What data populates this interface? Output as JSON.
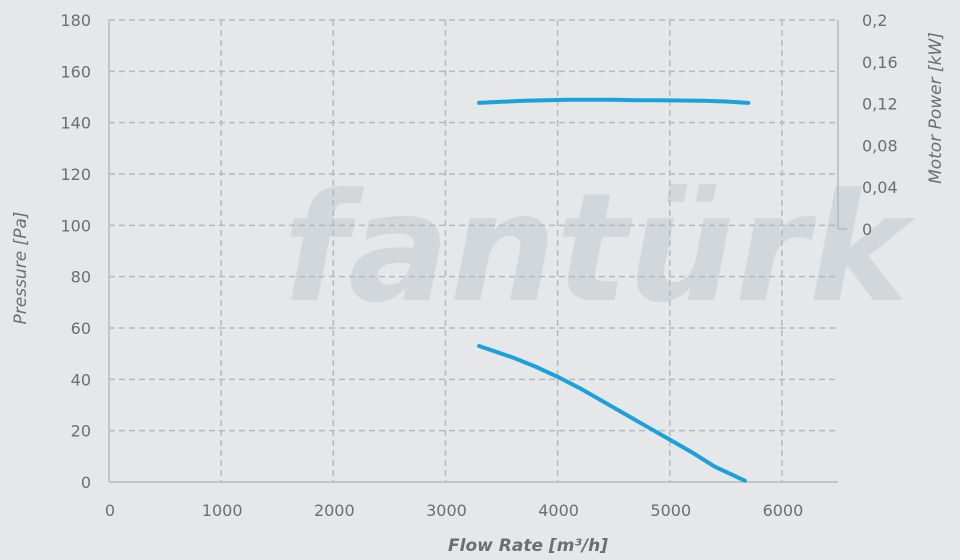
{
  "chart_data": {
    "type": "line",
    "xlabel": "Flow Rate [m³/h]",
    "ylabel": "Pressure [Pa]",
    "y2label": "Motor Power [kW]",
    "xlim": [
      0,
      6500
    ],
    "ylim": [
      0,
      180
    ],
    "y2lim": [
      0,
      0.2
    ],
    "x_ticks": [
      "0",
      "1000",
      "2000",
      "3000",
      "4000",
      "5000",
      "6000"
    ],
    "y_ticks": [
      "0",
      "20",
      "40",
      "60",
      "80",
      "100",
      "120",
      "140",
      "160",
      "180"
    ],
    "y2_ticks": [
      "0",
      "0,04",
      "0,08",
      "0,12",
      "0,16",
      "0,2"
    ],
    "grid": true,
    "watermark": "fantürk",
    "colors": {
      "series": "#1ba1dc",
      "grid": "#b7b9bb",
      "text": "#6d6e71",
      "background": "#e6e7e8"
    },
    "series": [
      {
        "axis": "right",
        "x": [
          3300,
          3500,
          3700,
          3900,
          4100,
          4300,
          4500,
          4700,
          4900,
          5100,
          5300,
          5500,
          5700
        ],
        "y": [
          0.1207,
          0.1217,
          0.1227,
          0.1233,
          0.1237,
          0.1237,
          0.1237,
          0.1233,
          0.1233,
          0.123,
          0.1227,
          0.122,
          0.1207
        ]
      },
      {
        "axis": "left",
        "x": [
          3300,
          3600,
          3800,
          4000,
          4200,
          4400,
          4600,
          4800,
          5000,
          5200,
          5400,
          5670
        ],
        "y": [
          53,
          48.5,
          45,
          41,
          36.5,
          31.5,
          26.5,
          21.5,
          16.5,
          11.5,
          6,
          0.5
        ]
      }
    ]
  }
}
